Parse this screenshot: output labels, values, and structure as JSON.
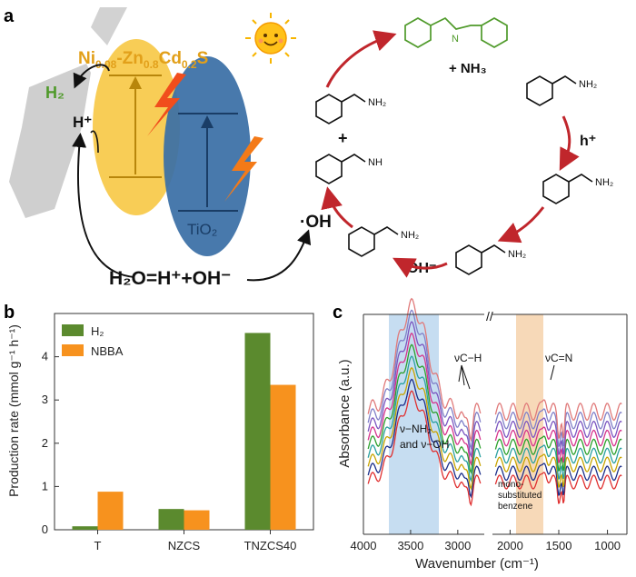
{
  "panel_a": {
    "label": "a",
    "catalyst_formula_parts": [
      "Ni",
      "0.08",
      "-Zn",
      "0.8",
      "Cd",
      "0.2",
      "S"
    ],
    "h2": "H₂",
    "h_plus": "H⁺",
    "tio2": "TiO₂",
    "water_eq": "H₂O=H⁺+OH⁻",
    "oh_radical": "·OH",
    "oh_minus": "OH⁻",
    "h_plus_hole": "h⁺",
    "nh3": "+ NH₃",
    "nh2": "NH₂",
    "nh": "NH",
    "nh2_plus": "NH₂",
    "plus": "+",
    "colors": {
      "cds": "#f7c948",
      "tio2": "#3a6fa6",
      "arrow_red": "#c0262c",
      "product": "#4f9a2a",
      "label_gold": "#e2a01a"
    }
  },
  "panel_b": {
    "label": "b",
    "chart_data": {
      "type": "bar",
      "categories": [
        "T",
        "NZCS",
        "TNZCS40"
      ],
      "series": [
        {
          "name": "H₂",
          "color": "#5b8a2e",
          "values": [
            0.08,
            0.48,
            4.55
          ]
        },
        {
          "name": "NBBA",
          "color": "#f7921e",
          "values": [
            0.88,
            0.45,
            3.35
          ]
        }
      ],
      "ylabel": "Production rate (mmol g⁻¹ h⁻¹)",
      "yticks": [
        "0",
        "1",
        "2",
        "3",
        "4"
      ],
      "ylim": [
        0,
        5
      ],
      "legend": "top-left"
    }
  },
  "panel_c": {
    "label": "c",
    "chart_data": {
      "type": "line",
      "xlabel": "Wavenumber (cm⁻¹)",
      "ylabel": "Absorbance (a.u.)",
      "xticks": [
        "4000",
        "3500",
        "3000",
        "2000",
        "1500",
        "1000"
      ],
      "x_reversed": true,
      "axis_break": "between 2700 and 2200",
      "series_colors": [
        "#e03030",
        "#1c2f8a",
        "#c8a400",
        "#2aa0a0",
        "#2ca02c",
        "#d6348c",
        "#7b55c0",
        "#8080c8",
        "#e07a7a"
      ],
      "annotations": [
        "νC−H",
        "νC=N",
        "ν−NH₂",
        "and ν−OH",
        "mono-",
        "substituted",
        "benzene"
      ]
    }
  }
}
